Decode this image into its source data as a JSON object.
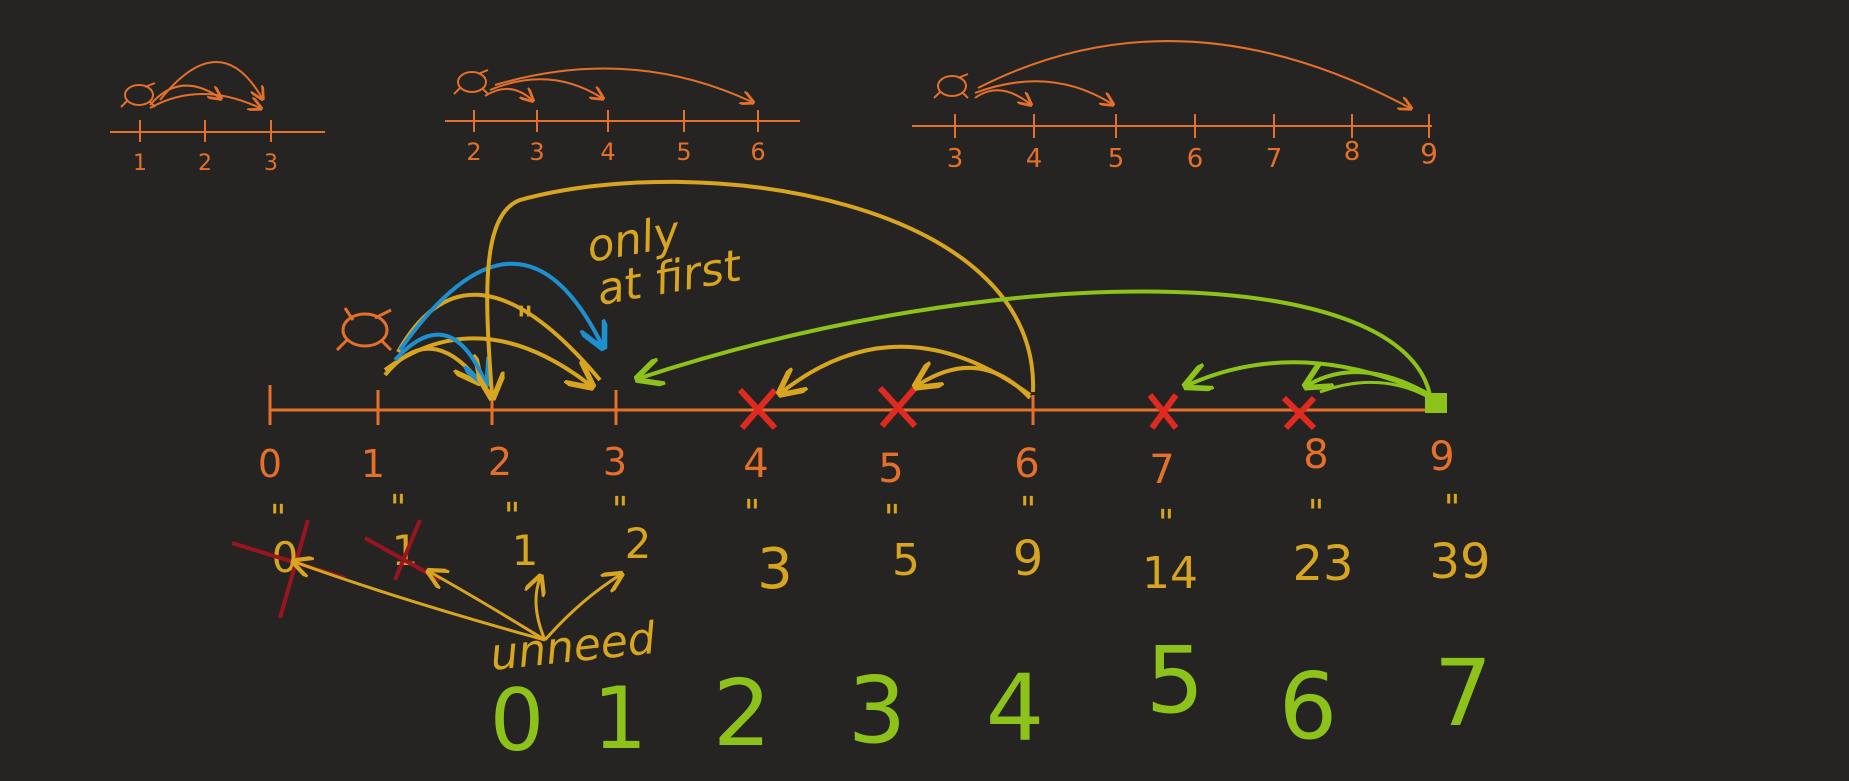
{
  "colors": {
    "background": "#262422",
    "orange": "#e5702a",
    "yellow": "#d8a520",
    "blue": "#1e90d0",
    "green": "#8cc21a",
    "red": "#e02a20",
    "darkred": "#9a1420"
  },
  "small_lines": [
    {
      "ticks": [
        "1",
        "2",
        "3"
      ]
    },
    {
      "ticks": [
        "2",
        "3",
        "4",
        "5",
        "6"
      ]
    },
    {
      "ticks": [
        "3",
        "4",
        "5",
        "6",
        "7",
        "8",
        "9"
      ]
    }
  ],
  "main_line": {
    "ticks": [
      "0",
      "1",
      "2",
      "3",
      "4",
      "5",
      "6",
      "7",
      "8",
      "9"
    ],
    "ways": [
      "0",
      "1",
      "1",
      "2",
      "3",
      "5",
      "9",
      "14",
      "23",
      "39"
    ],
    "ditto": "\"",
    "crossed_on_line": [
      "4",
      "5",
      "7",
      "8"
    ],
    "crossed_ways": [
      "0",
      "1"
    ]
  },
  "annotations": {
    "only_at_first_line1": "only",
    "only_at_first_line2": "at first",
    "ditto_mark": "\"",
    "unneed": "unneed"
  },
  "bottom_numbers": [
    "0",
    "1",
    "2",
    "3",
    "4",
    "5",
    "6",
    "7"
  ],
  "icons": {
    "frog": "frog-icon"
  }
}
